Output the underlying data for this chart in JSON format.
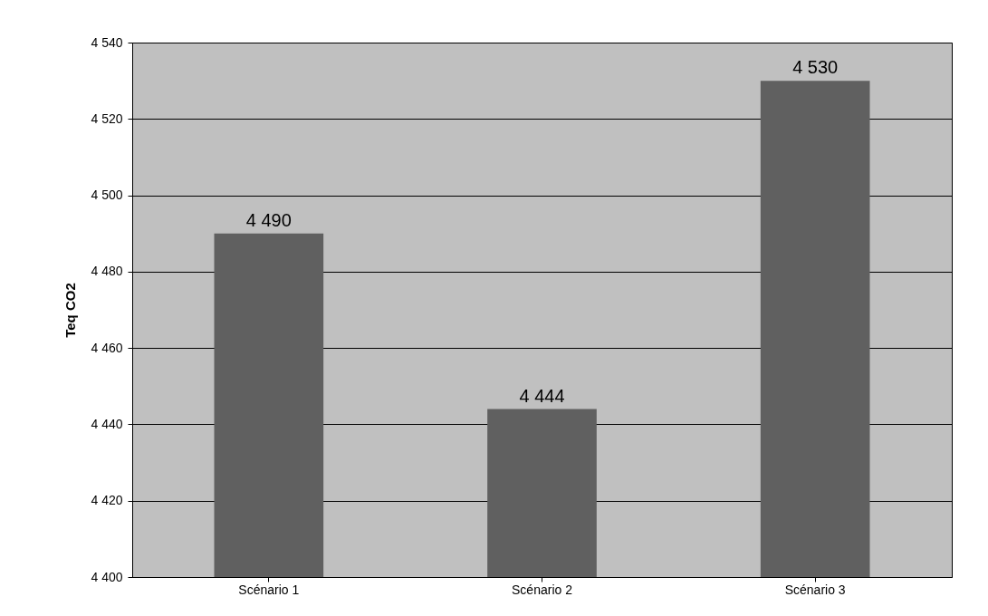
{
  "chart_data": {
    "type": "bar",
    "ylabel": "Teq CO2",
    "categories": [
      "Scénario 1",
      "Scénario 2",
      "Scénario 3"
    ],
    "values": [
      4490,
      4444,
      4530
    ],
    "color": "#606060",
    "value_labels": [
      "4 490",
      "4 444",
      "4 530"
    ],
    "ylim": [
      4400,
      4540
    ],
    "yticks": [
      {
        "value": 4400,
        "label": "4 400"
      },
      {
        "value": 4420,
        "label": "4 420"
      },
      {
        "value": 4440,
        "label": "4 440"
      },
      {
        "value": 4460,
        "label": "4 460"
      },
      {
        "value": 4480,
        "label": "4 480"
      },
      {
        "value": 4500,
        "label": "4 500"
      },
      {
        "value": 4520,
        "label": "4 520"
      },
      {
        "value": 4540,
        "label": "4 540"
      }
    ],
    "grid": "y"
  }
}
